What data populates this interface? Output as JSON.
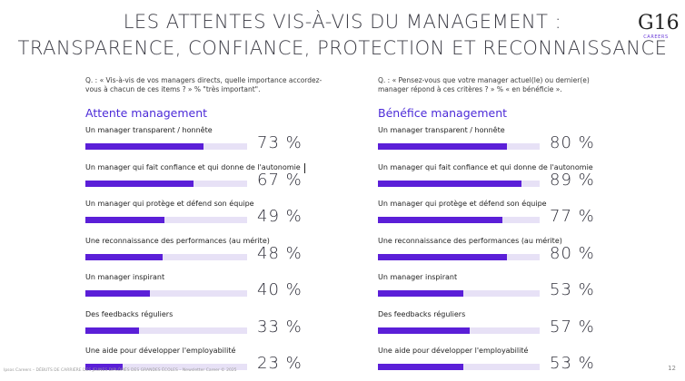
{
  "header": {
    "title_line1": "LES ATTENTES VIS-À-VIS DU MANAGEMENT :",
    "title_line2": "TRANSPARENCE, CONFIANCE, PROTECTION ET RECONNAISSANCE",
    "logo_text": "G16",
    "logo_sub": "CAREERS"
  },
  "colors": {
    "bar_fill": "#5b1fd8",
    "bar_track": "#e7e1f6",
    "accent": "#4c2bd8"
  },
  "chart_data": [
    {
      "type": "bar",
      "title": "Attente management",
      "question": "Q. : « Vis-à-vis de vos managers directs, quelle importance accordez-vous à chacun de ces items ? » % \"très important\".",
      "categories": [
        "Un manager transparent / honnête",
        "Un manager qui fait confiance et qui donne de l'autonomie",
        "Un manager qui protège et défend son équipe",
        "Une reconnaissance des performances (au mérite)",
        "Un manager inspirant",
        "Des feedbacks réguliers",
        "Une aide pour développer l'employabilité"
      ],
      "values": [
        73,
        67,
        49,
        48,
        40,
        33,
        23
      ],
      "labels": [
        "73 %",
        "67 %",
        "49 %",
        "48 %",
        "40 %",
        "33 %",
        "23 %"
      ],
      "xlim": [
        0,
        100
      ]
    },
    {
      "type": "bar",
      "title": "Bénéfice management",
      "question": "Q. : « Pensez-vous que votre manager actuel(le) ou dernier(e) manager répond à ces critères ? » % « en bénéficie ».",
      "categories": [
        "Un manager transparent / honnête",
        "Un manager qui fait confiance et qui donne de l'autonomie",
        "Un manager qui protège et défend son équipe",
        "Une reconnaissance des performances (au mérite)",
        "Un manager inspirant",
        "Des feedbacks réguliers",
        "Une aide pour développer l'employabilité"
      ],
      "values": [
        80,
        89,
        77,
        80,
        53,
        57,
        53
      ],
      "labels": [
        "80 %",
        "89 %",
        "77 %",
        "80 %",
        "53 %",
        "57 %",
        "53 %"
      ],
      "xlim": [
        0,
        100
      ]
    }
  ],
  "footer": {
    "source": "Ipsos Careers – DÉBUTS DE CARRIÈRE DES JEUNES DIPLÔMÉS DES GRANDES ÉCOLES – Newsletter Career © 2025",
    "page_number": "12"
  }
}
